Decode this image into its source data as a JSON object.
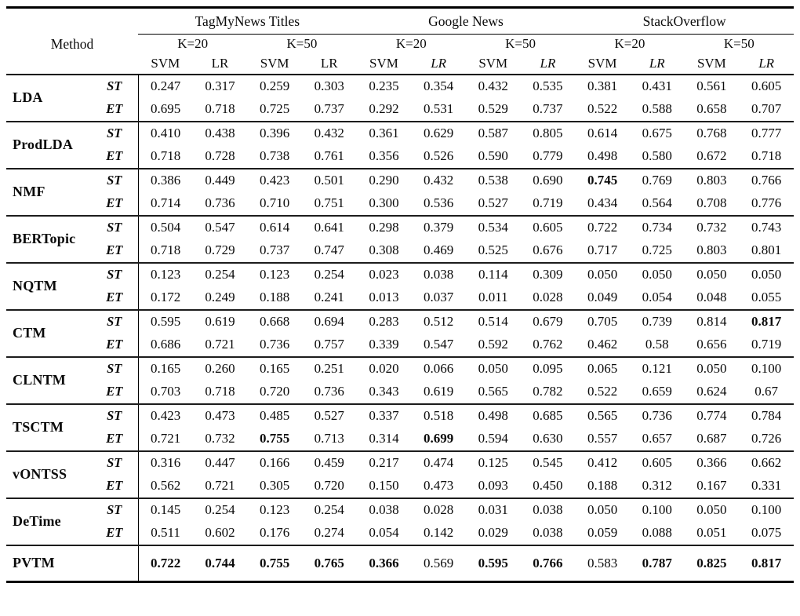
{
  "colors": {
    "background": "#ffffff",
    "text": "#0a0a0a",
    "rule": "#000000"
  },
  "table": {
    "method_header": "Method",
    "groups": [
      {
        "label": "TagMyNews Titles"
      },
      {
        "label": "Google News"
      },
      {
        "label": "StackOverflow"
      }
    ],
    "k_headers": [
      "K=20",
      "K=50",
      "K=20",
      "K=50",
      "K=20",
      "K=50"
    ],
    "clf_headers": [
      {
        "label": "SVM",
        "italic": false
      },
      {
        "label": "LR",
        "italic": false
      },
      {
        "label": "SVM",
        "italic": false
      },
      {
        "label": "LR",
        "italic": false
      },
      {
        "label": "SVM",
        "italic": false
      },
      {
        "label": "LR",
        "italic": true
      },
      {
        "label": "SVM",
        "italic": false
      },
      {
        "label": "LR",
        "italic": true
      },
      {
        "label": "SVM",
        "italic": false
      },
      {
        "label": "LR",
        "italic": true
      },
      {
        "label": "SVM",
        "italic": false
      },
      {
        "label": "LR",
        "italic": true
      }
    ],
    "methods": [
      {
        "name": "LDA",
        "rows": [
          {
            "label": "ST",
            "values": [
              "0.247",
              "0.317",
              "0.259",
              "0.303",
              "0.235",
              "0.354",
              "0.432",
              "0.535",
              "0.381",
              "0.431",
              "0.561",
              "0.605"
            ],
            "bold": []
          },
          {
            "label": "ET",
            "values": [
              "0.695",
              "0.718",
              "0.725",
              "0.737",
              "0.292",
              "0.531",
              "0.529",
              "0.737",
              "0.522",
              "0.588",
              "0.658",
              "0.707"
            ],
            "bold": []
          }
        ]
      },
      {
        "name": "ProdLDA",
        "rows": [
          {
            "label": "ST",
            "values": [
              "0.410",
              "0.438",
              "0.396",
              "0.432",
              "0.361",
              "0.629",
              "0.587",
              "0.805",
              "0.614",
              "0.675",
              "0.768",
              "0.777"
            ],
            "bold": []
          },
          {
            "label": "ET",
            "values": [
              "0.718",
              "0.728",
              "0.738",
              "0.761",
              "0.356",
              "0.526",
              "0.590",
              "0.779",
              "0.498",
              "0.580",
              "0.672",
              "0.718"
            ],
            "bold": []
          }
        ]
      },
      {
        "name": "NMF",
        "rows": [
          {
            "label": "ST",
            "values": [
              "0.386",
              "0.449",
              "0.423",
              "0.501",
              "0.290",
              "0.432",
              "0.538",
              "0.690",
              "0.745",
              "0.769",
              "0.803",
              "0.766"
            ],
            "bold": [
              8
            ]
          },
          {
            "label": "ET",
            "values": [
              "0.714",
              "0.736",
              "0.710",
              "0.751",
              "0.300",
              "0.536",
              "0.527",
              "0.719",
              "0.434",
              "0.564",
              "0.708",
              "0.776"
            ],
            "bold": []
          }
        ]
      },
      {
        "name": "BERTopic",
        "rows": [
          {
            "label": "ST",
            "values": [
              "0.504",
              "0.547",
              "0.614",
              "0.641",
              "0.298",
              "0.379",
              "0.534",
              "0.605",
              "0.722",
              "0.734",
              "0.732",
              "0.743"
            ],
            "bold": []
          },
          {
            "label": "ET",
            "values": [
              "0.718",
              "0.729",
              "0.737",
              "0.747",
              "0.308",
              "0.469",
              "0.525",
              "0.676",
              "0.717",
              "0.725",
              "0.803",
              "0.801"
            ],
            "bold": []
          }
        ]
      },
      {
        "name": "NQTM",
        "rows": [
          {
            "label": "ST",
            "values": [
              "0.123",
              "0.254",
              "0.123",
              "0.254",
              "0.023",
              "0.038",
              "0.114",
              "0.309",
              "0.050",
              "0.050",
              "0.050",
              "0.050"
            ],
            "bold": []
          },
          {
            "label": "ET",
            "values": [
              "0.172",
              "0.249",
              "0.188",
              "0.241",
              "0.013",
              "0.037",
              "0.011",
              "0.028",
              "0.049",
              "0.054",
              "0.048",
              "0.055"
            ],
            "bold": []
          }
        ]
      },
      {
        "name": "CTM",
        "rows": [
          {
            "label": "ST",
            "values": [
              "0.595",
              "0.619",
              "0.668",
              "0.694",
              "0.283",
              "0.512",
              "0.514",
              "0.679",
              "0.705",
              "0.739",
              "0.814",
              "0.817"
            ],
            "bold": [
              11
            ]
          },
          {
            "label": "ET",
            "values": [
              "0.686",
              "0.721",
              "0.736",
              "0.757",
              "0.339",
              "0.547",
              "0.592",
              "0.762",
              "0.462",
              "0.58",
              "0.656",
              "0.719"
            ],
            "bold": []
          }
        ]
      },
      {
        "name": "CLNTM",
        "rows": [
          {
            "label": "ST",
            "values": [
              "0.165",
              "0.260",
              "0.165",
              "0.251",
              "0.020",
              "0.066",
              "0.050",
              "0.095",
              "0.065",
              "0.121",
              "0.050",
              "0.100"
            ],
            "bold": []
          },
          {
            "label": "ET",
            "values": [
              "0.703",
              "0.718",
              "0.720",
              "0.736",
              "0.343",
              "0.619",
              "0.565",
              "0.782",
              "0.522",
              "0.659",
              "0.624",
              "0.67"
            ],
            "bold": []
          }
        ]
      },
      {
        "name": "TSCTM",
        "rows": [
          {
            "label": "ST",
            "values": [
              "0.423",
              "0.473",
              "0.485",
              "0.527",
              "0.337",
              "0.518",
              "0.498",
              "0.685",
              "0.565",
              "0.736",
              "0.774",
              "0.784"
            ],
            "bold": []
          },
          {
            "label": "ET",
            "values": [
              "0.721",
              "0.732",
              "0.755",
              "0.713",
              "0.314",
              "0.699",
              "0.594",
              "0.630",
              "0.557",
              "0.657",
              "0.687",
              "0.726"
            ],
            "bold": [
              2,
              5
            ]
          }
        ]
      },
      {
        "name": "vONTSS",
        "rows": [
          {
            "label": "ST",
            "values": [
              "0.316",
              "0.447",
              "0.166",
              "0.459",
              "0.217",
              "0.474",
              "0.125",
              "0.545",
              "0.412",
              "0.605",
              "0.366",
              "0.662"
            ],
            "bold": []
          },
          {
            "label": "ET",
            "values": [
              "0.562",
              "0.721",
              "0.305",
              "0.720",
              "0.150",
              "0.473",
              "0.093",
              "0.450",
              "0.188",
              "0.312",
              "0.167",
              "0.331"
            ],
            "bold": []
          }
        ]
      },
      {
        "name": "DeTime",
        "rows": [
          {
            "label": "ST",
            "values": [
              "0.145",
              "0.254",
              "0.123",
              "0.254",
              "0.038",
              "0.028",
              "0.031",
              "0.038",
              "0.050",
              "0.100",
              "0.050",
              "0.100"
            ],
            "bold": []
          },
          {
            "label": "ET",
            "values": [
              "0.511",
              "0.602",
              "0.176",
              "0.274",
              "0.054",
              "0.142",
              "0.029",
              "0.038",
              "0.059",
              "0.088",
              "0.051",
              "0.075"
            ],
            "bold": []
          }
        ]
      },
      {
        "name": "PVTM",
        "rows": [
          {
            "label": "",
            "values": [
              "0.722",
              "0.744",
              "0.755",
              "0.765",
              "0.366",
              "0.569",
              "0.595",
              "0.766",
              "0.583",
              "0.787",
              "0.825",
              "0.817"
            ],
            "bold": [
              0,
              1,
              2,
              3,
              4,
              6,
              7,
              9,
              10,
              11
            ]
          }
        ]
      }
    ]
  }
}
